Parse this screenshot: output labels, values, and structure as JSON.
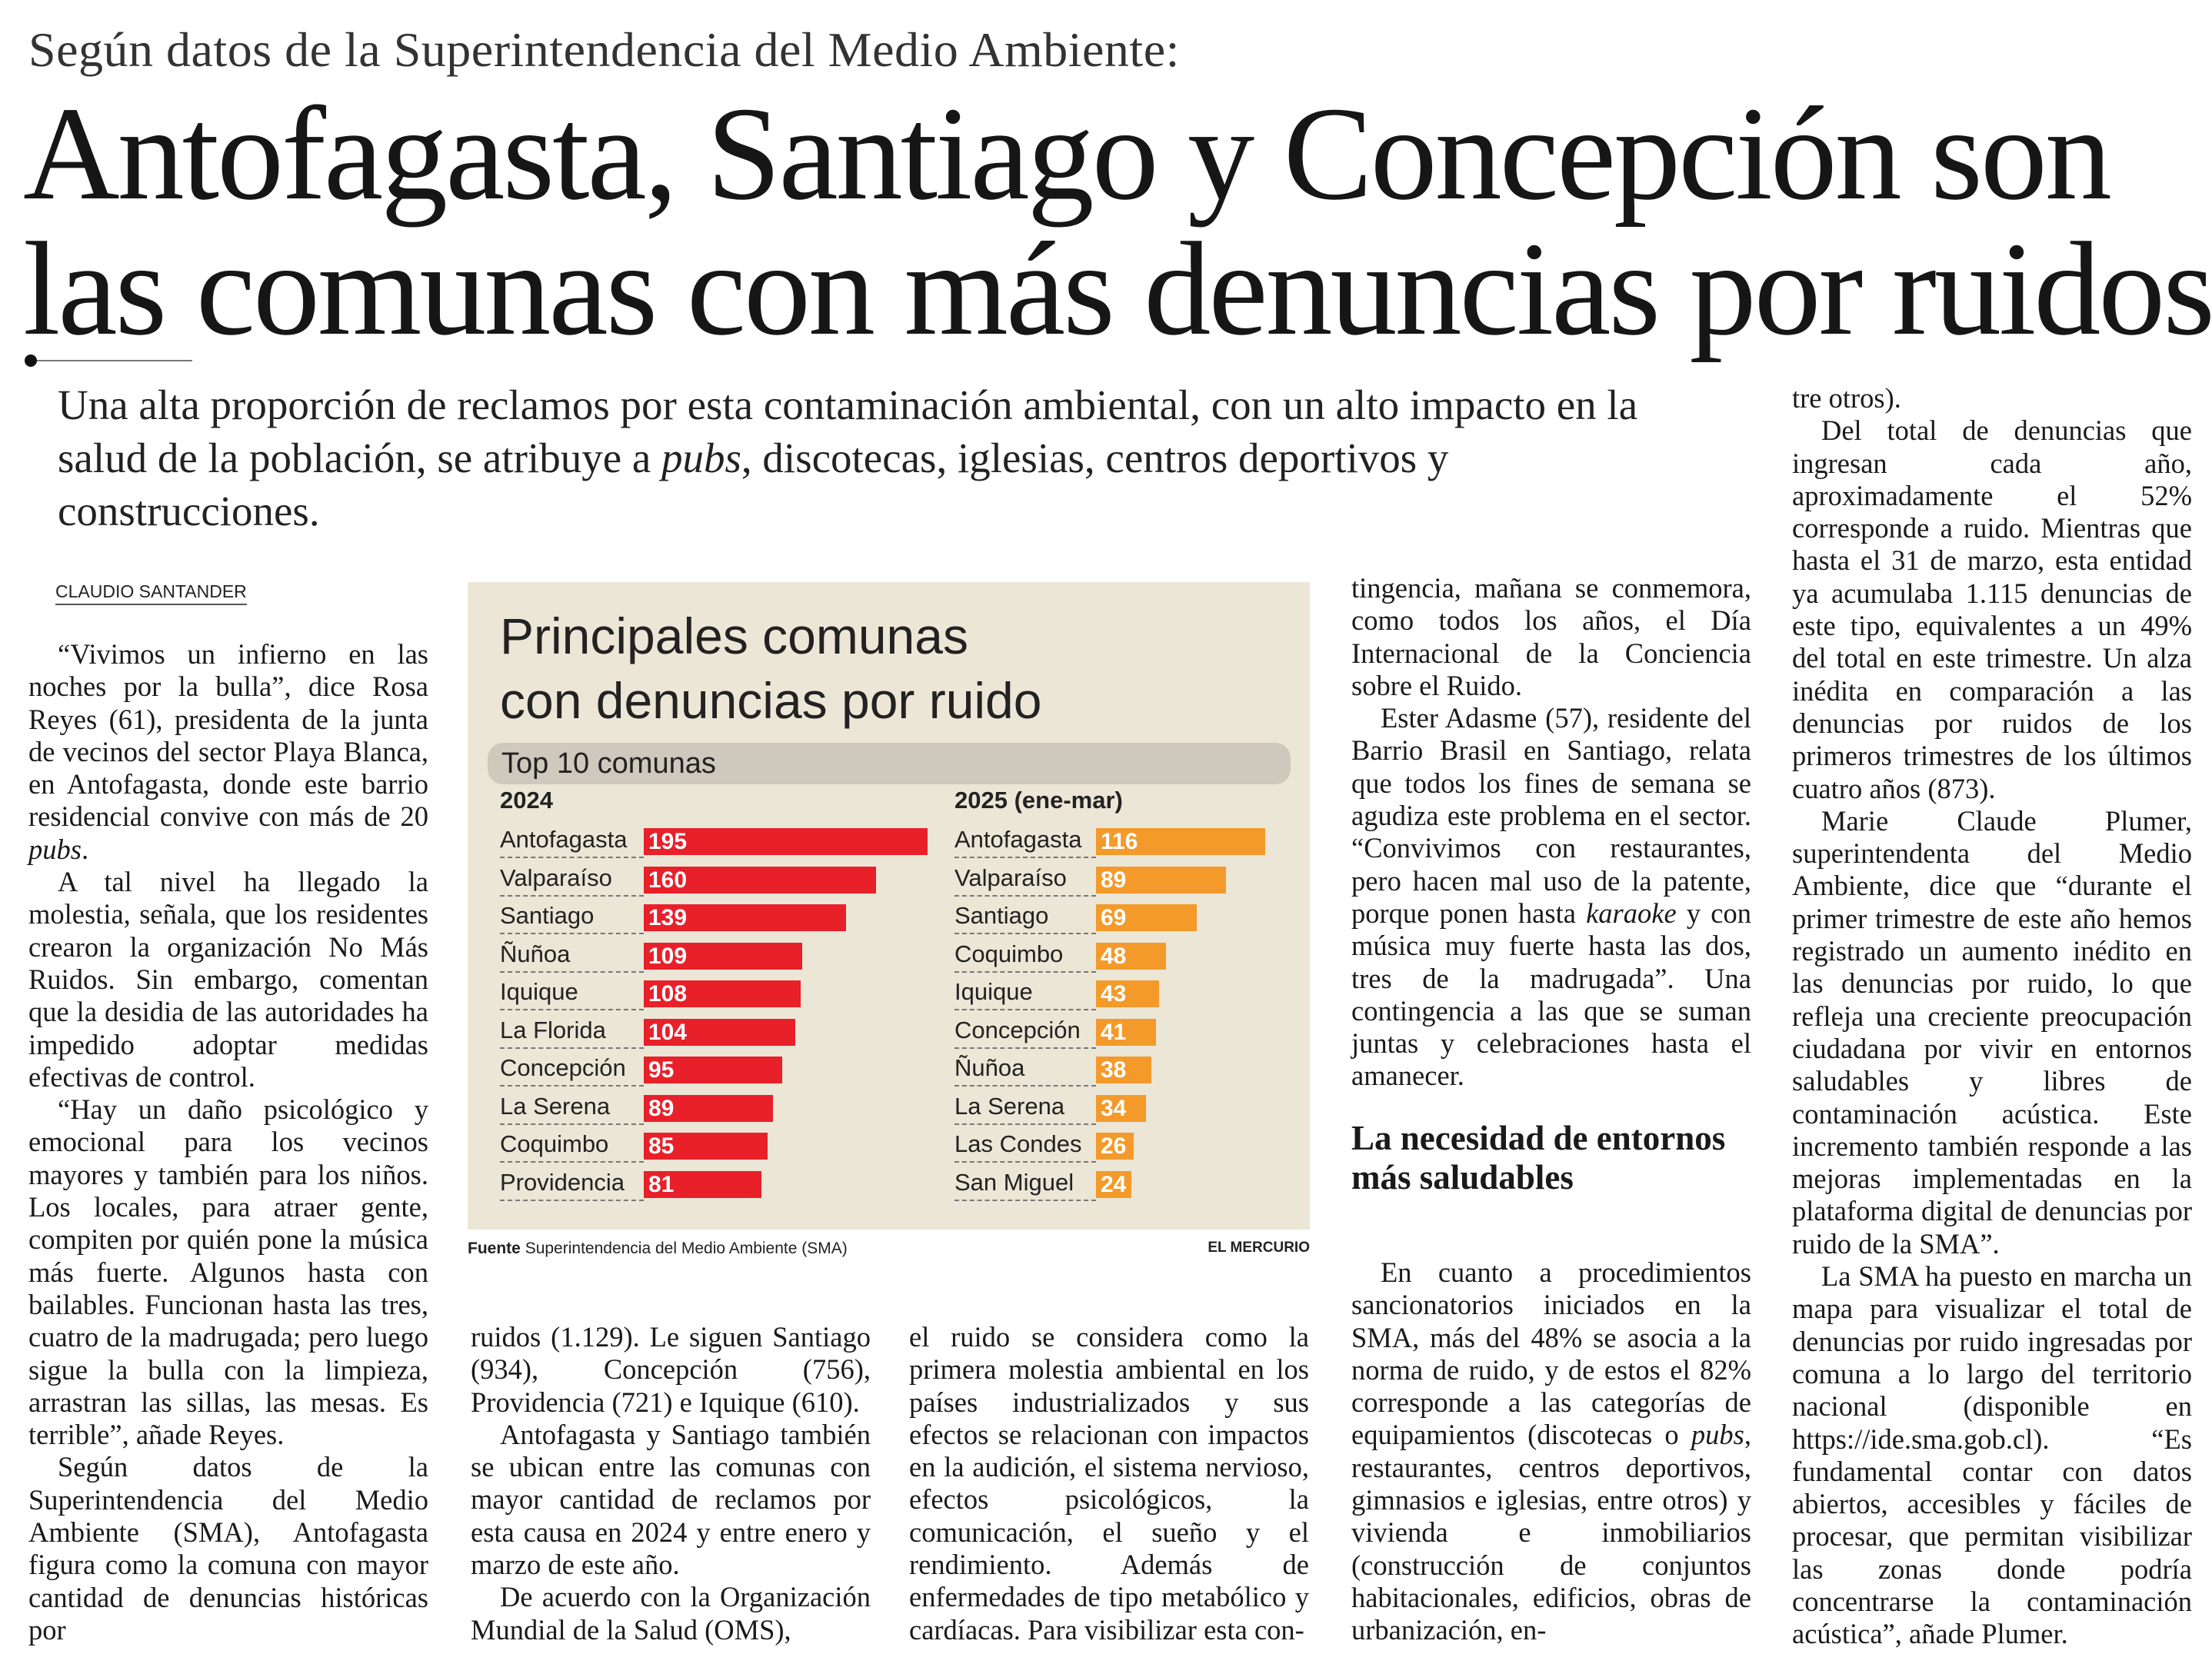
{
  "kicker": "Según datos de la Superintendencia del Medio Ambiente:",
  "headline": [
    "Antofagasta, Santiago y Concepción son",
    "las comunas con más denuncias por ruidos"
  ],
  "deck": [
    {
      "t": "Una alta proporción de reclamos por esta contaminación ambiental, con un alto impacto en la salud de la población, se atribuye a "
    },
    {
      "t": "pubs",
      "i": true
    },
    {
      "t": ", discotecas, iglesias, centros deportivos y construcciones."
    }
  ],
  "byline": "CLAUDIO SANTANDER",
  "subhead": "La necesidad de entornos más saludables",
  "cols": {
    "col1": [
      {
        "segs": [
          {
            "t": "“Vivimos un infierno en las noches por la bulla”, dice Rosa Reyes (61), presidenta de la junta de vecinos del sector Playa Blanca, en Antofagasta, donde este barrio residencial convive con más de 20 "
          },
          {
            "t": "pubs",
            "i": true
          },
          {
            "t": "."
          }
        ]
      },
      {
        "segs": [
          {
            "t": "A tal nivel ha llegado la molestia, señala, que los residentes crearon la organización No Más Ruidos. Sin embargo, comentan que la desidia de las autoridades ha impedido adoptar medidas efectivas de control."
          }
        ]
      },
      {
        "segs": [
          {
            "t": "“Hay un daño psicológico y emocional para los vecinos mayores y también para los niños. Los locales, para atraer gente, compiten por quién pone la música más fuerte. Algunos hasta con bailables. Funcionan hasta las tres, cuatro de la madrugada; pero luego sigue la bulla con la limpieza, arrastran las sillas, las mesas. Es terrible”, añade Reyes."
          }
        ]
      },
      {
        "segs": [
          {
            "t": "Según datos de la Superintendencia del Medio Ambiente (SMA), Antofagasta figura como la comuna con mayor cantidad de denuncias históricas por"
          }
        ]
      }
    ],
    "col2": [
      {
        "noind": true,
        "segs": [
          {
            "t": "ruidos (1.129). Le siguen Santiago (934), Concepción (756), Providencia (721) e Iquique (610)."
          }
        ]
      },
      {
        "segs": [
          {
            "t": "Antofagasta y Santiago también se ubican entre las comunas con mayor cantidad de reclamos por esta causa en 2024 y entre enero y marzo de este año."
          }
        ]
      },
      {
        "segs": [
          {
            "t": "De acuerdo con la Organización Mundial de la Salud (OMS),"
          }
        ]
      }
    ],
    "col3": [
      {
        "noind": true,
        "segs": [
          {
            "t": "el ruido se considera como la primera molestia ambiental en los países industrializados y sus efectos se relacionan con impactos en la audición, el sistema nervioso, efectos psicológicos, la comunicación, el sueño y el rendimiento. Además de enfermedades de tipo metabólico y cardíacas. Para visibilizar esta con-"
          }
        ]
      }
    ],
    "col4": [
      {
        "noind": true,
        "segs": [
          {
            "t": "tingencia, mañana se conmemora, como todos los años, el Día Internacional de la Conciencia sobre el Ruido."
          }
        ]
      },
      {
        "segs": [
          {
            "t": "Ester Adasme (57), residente del Barrio Brasil en Santiago, relata que todos los fines de semana se agudiza este problema en el sector. “Convivimos con restaurantes, pero hacen mal uso de la patente, porque ponen hasta "
          },
          {
            "t": "karaoke",
            "i": true
          },
          {
            "t": " y con música muy fuerte hasta las dos, tres de la madrugada”. Una contingencia a las que se suman juntas y celebraciones hasta el amanecer."
          }
        ]
      }
    ],
    "col4b": [
      {
        "segs": [
          {
            "t": "En cuanto a procedimientos sancionatorios iniciados en la SMA, más del 48% se asocia a la norma de ruido, y de estos el 82% corresponde a las categorías de equipamientos (discotecas o "
          },
          {
            "t": "pubs",
            "i": true
          },
          {
            "t": ", restaurantes, centros deportivos, gimnasios e iglesias, entre otros) y vivienda e inmobiliarios (construcción de conjuntos habitacionales, edificios, obras de urbanización, en-"
          }
        ]
      }
    ],
    "col5": [
      {
        "noind": true,
        "segs": [
          {
            "t": "tre otros)."
          }
        ]
      },
      {
        "segs": [
          {
            "t": "Del total de denuncias que ingresan cada año, aproximadamente el 52% corresponde a ruido. Mientras que hasta el 31 de marzo, esta entidad ya acumulaba 1.115 denuncias de este tipo, equivalentes a un 49% del total en este trimestre. Un alza inédita en comparación a las denuncias por ruidos de los primeros trimestres de los últimos cuatro años (873)."
          }
        ]
      },
      {
        "segs": [
          {
            "t": "Marie Claude Plumer, superintendenta del Medio Ambiente, dice que “durante el primer trimestre de este año hemos registrado un aumento inédito en las denuncias por ruido, lo que refleja una creciente preocupación ciudadana por vivir en entornos saludables y libres de contaminación acústica. Este incremento también responde a las mejoras implementadas en la plataforma digital de denuncias por ruido de la SMA”."
          }
        ]
      },
      {
        "segs": [
          {
            "t": "La SMA ha puesto en marcha un mapa para visualizar el total de denuncias por ruido ingresadas por comuna a lo largo del territorio nacional (disponible en https://ide.sma.gob.cl). “Es fundamental contar con datos abiertos, accesibles y fáciles de procesar, que permitan visibilizar las zonas donde podría concentrarse la contaminación acústica”, añade Plumer."
          }
        ]
      }
    ]
  },
  "chart_data": {
    "type": "bar",
    "title": [
      "Principales comunas",
      "con denuncias por ruido"
    ],
    "subtitle": "Top 10 comunas",
    "series": [
      {
        "name": "2024",
        "color": "#e8202a",
        "categories": [
          "Antofagasta",
          "Valparaíso",
          "Santiago",
          "Ñuñoa",
          "Iquique",
          "La Florida",
          "Concepción",
          "La Serena",
          "Coquimbo",
          "Providencia"
        ],
        "values": [
          195,
          160,
          139,
          109,
          108,
          104,
          95,
          89,
          85,
          81
        ]
      },
      {
        "name": "2025 (ene-mar)",
        "color": "#f39a2b",
        "categories": [
          "Antofagasta",
          "Valparaíso",
          "Santiago",
          "Coquimbo",
          "Iquique",
          "Concepción",
          "Ñuñoa",
          "La Serena",
          "Las Condes",
          "San Miguel"
        ],
        "values": [
          116,
          89,
          69,
          48,
          43,
          41,
          38,
          34,
          26,
          24
        ]
      }
    ],
    "source_label": "Fuente",
    "source": "Superintendencia del Medio Ambiente (SMA)",
    "brand": "EL MERCURIO"
  }
}
